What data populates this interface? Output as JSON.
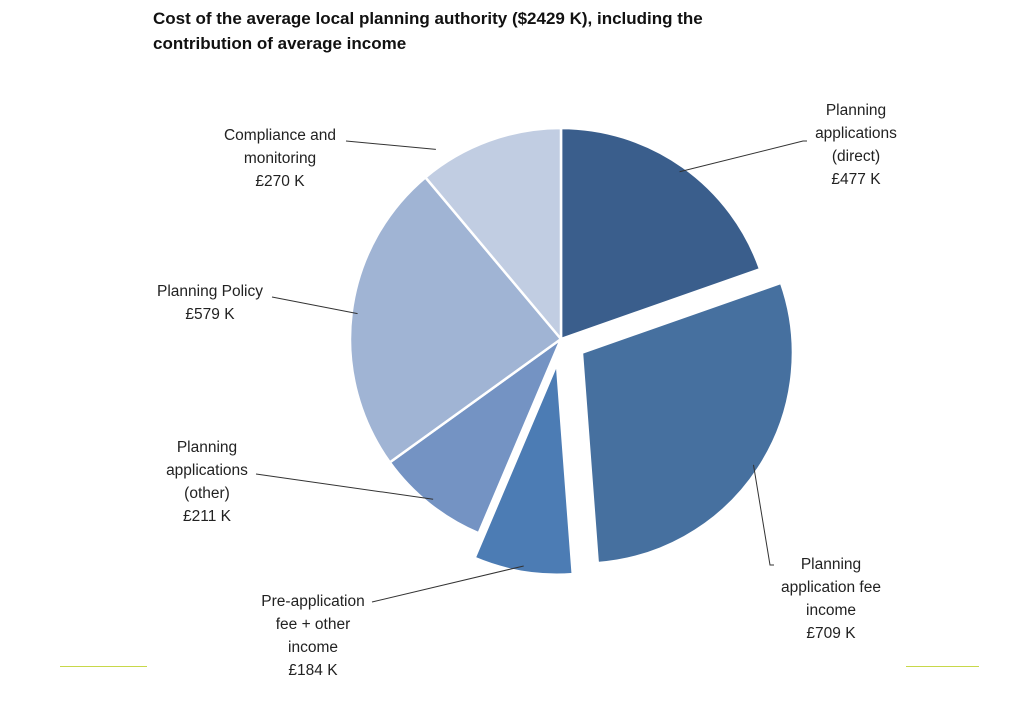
{
  "chart_data": {
    "type": "pie",
    "title": "Cost of the average local planning authority ($2429 K), including the contribution of average income",
    "slices": [
      {
        "label_lines": [
          "Planning",
          "applications",
          "(direct)"
        ],
        "value_text": "£477 K",
        "value": 477,
        "color": "#3a5e8c",
        "exploded": false
      },
      {
        "label_lines": [
          "Planning",
          "application fee",
          "income"
        ],
        "value_text": "£709 K",
        "value": 709,
        "color": "#46709f",
        "exploded": true
      },
      {
        "label_lines": [
          "Pre-application",
          "fee + other",
          "income"
        ],
        "value_text": "£184 K",
        "value": 184,
        "color": "#4c7cb4",
        "exploded": true
      },
      {
        "label_lines": [
          "Planning",
          "applications",
          "(other)"
        ],
        "value_text": "£211 K",
        "value": 211,
        "color": "#7493c3",
        "exploded": false
      },
      {
        "label_lines": [
          "Planning Policy"
        ],
        "value_text": "£579 K",
        "value": 579,
        "color": "#a0b4d4",
        "exploded": false
      },
      {
        "label_lines": [
          "Compliance and",
          "monitoring"
        ],
        "value_text": "£270 K",
        "value": 270,
        "color": "#c1cde2",
        "exploded": false
      }
    ]
  }
}
